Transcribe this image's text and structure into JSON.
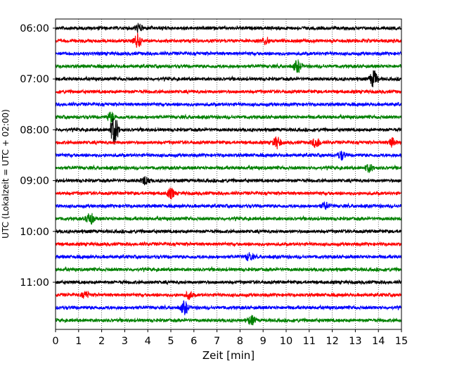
{
  "chart_data": {
    "type": "line",
    "subtype": "helicorder-seismogram",
    "title": "",
    "xlabel": "Zeit  [min]",
    "ylabel": "UTC (Lokalzeit = UTC + 02:00)",
    "xlim": [
      0,
      15
    ],
    "x_ticks": [
      "0",
      "1",
      "2",
      "3",
      "4",
      "5",
      "6",
      "7",
      "8",
      "9",
      "10",
      "11",
      "12",
      "13",
      "14",
      "15"
    ],
    "y_tick_labels": [
      "06:00",
      "07:00",
      "08:00",
      "09:00",
      "10:00",
      "11:00"
    ],
    "y_tick_label_row_index": [
      0,
      4,
      8,
      12,
      16,
      20
    ],
    "row_minutes": 15,
    "rows_count": 24,
    "color_cycle": [
      "#000000",
      "#ff0000",
      "#0000ff",
      "#008000"
    ],
    "vertical_grid": "dotted",
    "events": [
      {
        "row": 0,
        "minute": 3.6,
        "amp": 0.6
      },
      {
        "row": 1,
        "minute": 3.55,
        "amp": 0.95
      },
      {
        "row": 1,
        "minute": 9.1,
        "amp": 0.5
      },
      {
        "row": 3,
        "minute": 10.5,
        "amp": 0.85
      },
      {
        "row": 4,
        "minute": 13.8,
        "amp": 1.3
      },
      {
        "row": 7,
        "minute": 2.4,
        "amp": 0.7
      },
      {
        "row": 8,
        "minute": 2.55,
        "amp": 2.2
      },
      {
        "row": 9,
        "minute": 9.6,
        "amp": 0.8
      },
      {
        "row": 9,
        "minute": 11.3,
        "amp": 0.8
      },
      {
        "row": 9,
        "minute": 14.6,
        "amp": 0.6
      },
      {
        "row": 10,
        "minute": 12.4,
        "amp": 0.6
      },
      {
        "row": 11,
        "minute": 13.6,
        "amp": 0.55
      },
      {
        "row": 12,
        "minute": 3.9,
        "amp": 0.65
      },
      {
        "row": 13,
        "minute": 5.0,
        "amp": 0.7
      },
      {
        "row": 14,
        "minute": 11.7,
        "amp": 0.5
      },
      {
        "row": 15,
        "minute": 1.5,
        "amp": 0.9
      },
      {
        "row": 18,
        "minute": 8.4,
        "amp": 0.55
      },
      {
        "row": 21,
        "minute": 1.3,
        "amp": 0.5
      },
      {
        "row": 21,
        "minute": 5.8,
        "amp": 0.5
      },
      {
        "row": 22,
        "minute": 5.6,
        "amp": 0.9
      },
      {
        "row": 23,
        "minute": 8.5,
        "amp": 0.65
      }
    ]
  }
}
